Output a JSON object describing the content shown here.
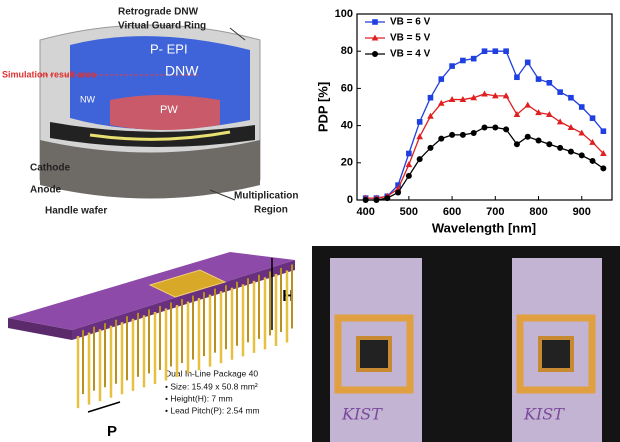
{
  "device_diagram": {
    "labels": [
      "Retrograde DNW",
      "Virtual Guard Ring",
      "P- EPI",
      "DNW",
      "Simulation result area",
      "NW",
      "PW",
      "Cathode",
      "Anode",
      "Handle wafer",
      "Multiplication",
      "Region"
    ]
  },
  "chart_data": {
    "type": "line",
    "x": [
      400,
      425,
      450,
      475,
      500,
      525,
      550,
      575,
      600,
      625,
      650,
      675,
      700,
      725,
      750,
      775,
      800,
      825,
      850,
      875,
      900,
      925,
      950
    ],
    "series": [
      {
        "name": "VB = 6 V",
        "color": "#1f3fe0",
        "marker": "square",
        "values": [
          1,
          1,
          2,
          8,
          25,
          42,
          55,
          65,
          72,
          75,
          76,
          80,
          80,
          80,
          66,
          74,
          65,
          63,
          58,
          55,
          50,
          44,
          37
        ]
      },
      {
        "name": "VB = 5 V",
        "color": "#e02020",
        "marker": "triangle",
        "values": [
          1,
          1,
          2,
          6,
          19,
          34,
          45,
          52,
          54,
          54,
          55,
          57,
          56,
          56,
          46,
          51,
          47,
          46,
          42,
          39,
          36,
          31,
          25
        ]
      },
      {
        "name": "VB = 4 V",
        "color": "#000000",
        "marker": "circle",
        "values": [
          0,
          0,
          1,
          4,
          13,
          22,
          28,
          33,
          35,
          35,
          36,
          39,
          39,
          38,
          30,
          34,
          32,
          30,
          28,
          26,
          24,
          21,
          17
        ]
      }
    ],
    "xlabel": "Wavelength [nm]",
    "ylabel": "PDP [%]",
    "xlim": [
      380,
      970
    ],
    "ylim": [
      0,
      100
    ],
    "xticks": [
      400,
      500,
      600,
      700,
      800,
      900
    ],
    "yticks": [
      0,
      20,
      40,
      60,
      80,
      100
    ],
    "legend": "upper left"
  },
  "package_diagram": {
    "height_label": "H",
    "pitch_label": "P",
    "title": "Dual In-Line Package 40",
    "specs": [
      "• Size: 15.49 x 50.8 mm²",
      "• Height(H): 7 mm",
      "• Lead Pitch(P): 2.54 mm"
    ]
  },
  "photo": {
    "labels": [
      "KIST",
      "KIST"
    ]
  }
}
